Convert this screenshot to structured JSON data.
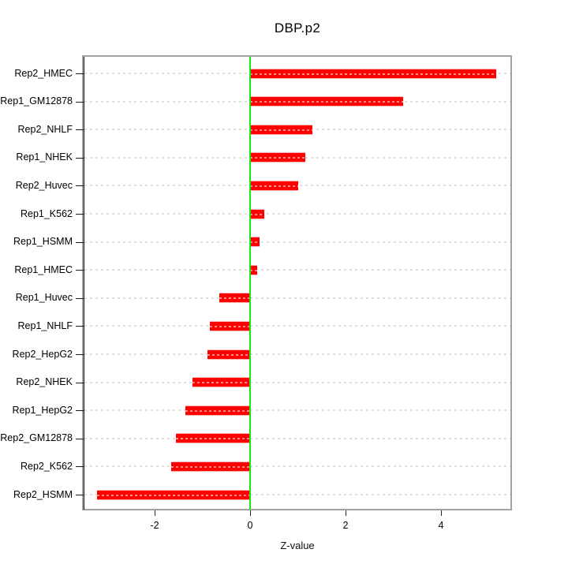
{
  "chart_data": {
    "type": "bar",
    "orientation": "horizontal",
    "title": "DBP.p2",
    "xlabel": "Z-value",
    "ylabel": "",
    "categories": [
      "Rep2_HMEC",
      "Rep1_GM12878",
      "Rep2_NHLF",
      "Rep1_NHEK",
      "Rep2_Huvec",
      "Rep1_K562",
      "Rep1_HSMM",
      "Rep1_HMEC",
      "Rep1_Huvec",
      "Rep1_NHLF",
      "Rep2_HepG2",
      "Rep2_NHEK",
      "Rep1_HepG2",
      "Rep2_GM12878",
      "Rep2_K562",
      "Rep2_HSMM"
    ],
    "values": [
      5.15,
      3.2,
      1.3,
      1.15,
      1.0,
      0.3,
      0.2,
      0.15,
      -0.65,
      -0.85,
      -0.9,
      -1.2,
      -1.35,
      -1.55,
      -1.65,
      -3.2
    ],
    "xlim": [
      -3.5,
      5.5
    ],
    "x_tick_values": [
      -2,
      0,
      2,
      4
    ],
    "x_tick_labels": [
      "-2",
      "0",
      "2",
      "4"
    ],
    "grid": true,
    "legend": false,
    "colors": {
      "bar": "#ff0000",
      "zero_line": "#17e617",
      "grid_line": "#dedede",
      "box_border": "#a3a3a3",
      "axis": "#1c1c1c"
    }
  }
}
